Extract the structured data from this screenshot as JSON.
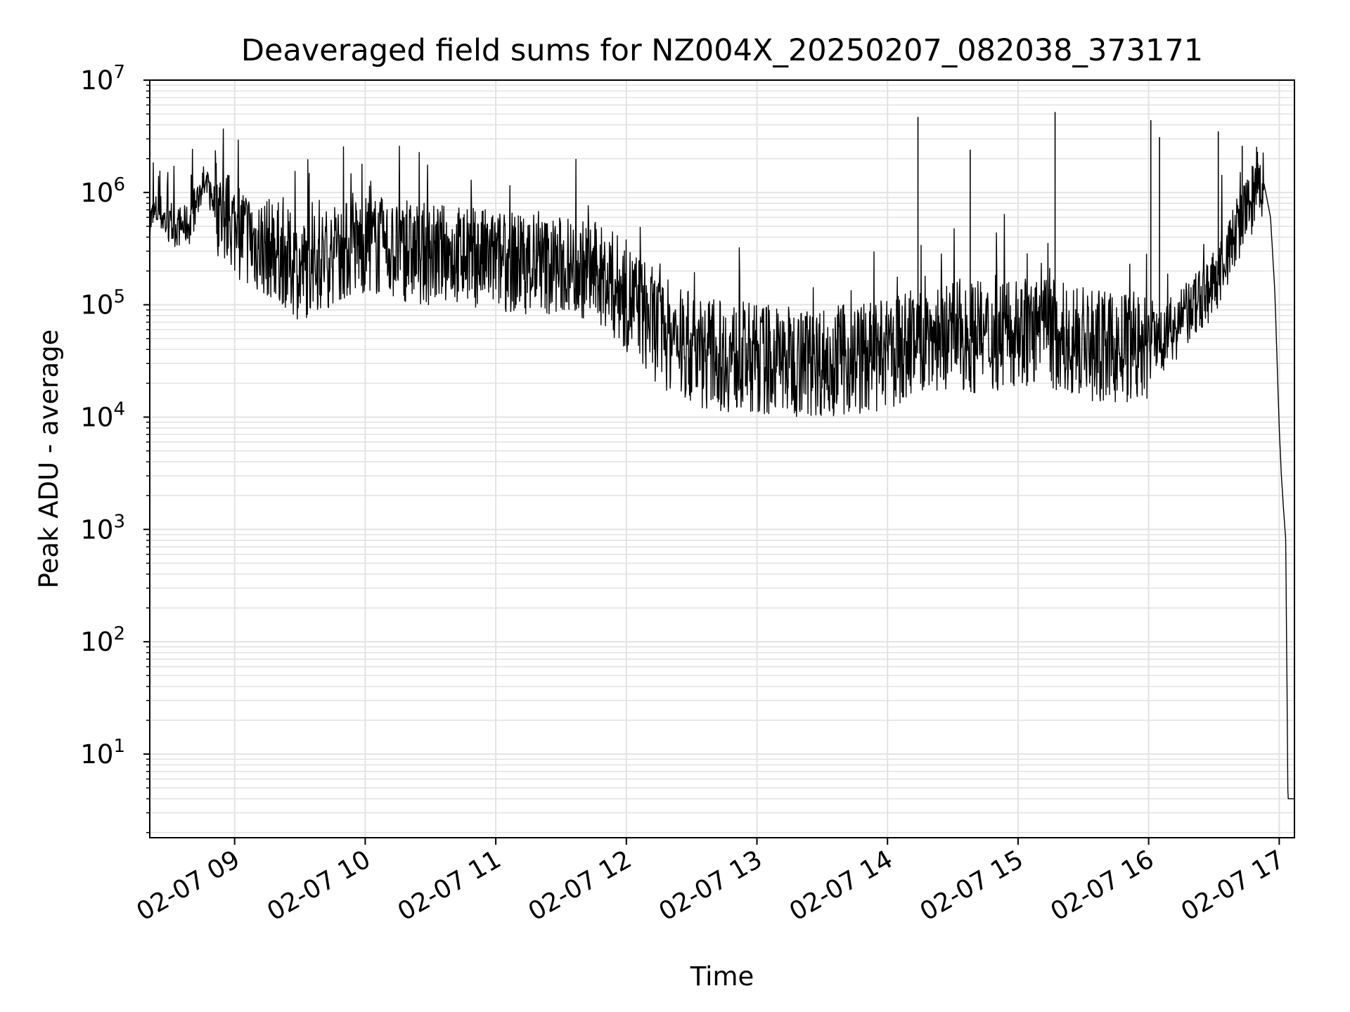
{
  "chart_data": {
    "type": "line",
    "title": "Deaveraged field sums for NZ004X_20250207_082038_373171",
    "xlabel": "Time",
    "ylabel": "Peak ADU - average",
    "x_range": [
      "2025-02-07 08:21",
      "2025-02-07 17:07"
    ],
    "x_ticks": [
      "02-07 09",
      "02-07 10",
      "02-07 11",
      "02-07 12",
      "02-07 13",
      "02-07 14",
      "02-07 15",
      "02-07 16",
      "02-07 17"
    ],
    "y_scale": "log",
    "ylim": [
      1.8,
      10000000
    ],
    "y_ticks": [
      {
        "base": "10",
        "exp": "1"
      },
      {
        "base": "10",
        "exp": "2"
      },
      {
        "base": "10",
        "exp": "3"
      },
      {
        "base": "10",
        "exp": "4"
      },
      {
        "base": "10",
        "exp": "5"
      },
      {
        "base": "10",
        "exp": "6"
      },
      {
        "base": "10",
        "exp": "7"
      }
    ],
    "grid": true,
    "series": [
      {
        "color": "#000000",
        "x": [
          "2025-02-07 08:21",
          "2025-02-07 08:25",
          "2025-02-07 08:30",
          "2025-02-07 08:35",
          "2025-02-07 08:40",
          "2025-02-07 08:45",
          "2025-02-07 08:50",
          "2025-02-07 08:55",
          "2025-02-07 09:00",
          "2025-02-07 09:10",
          "2025-02-07 09:20",
          "2025-02-07 09:30",
          "2025-02-07 09:40",
          "2025-02-07 09:50",
          "2025-02-07 10:00",
          "2025-02-07 10:15",
          "2025-02-07 10:30",
          "2025-02-07 10:45",
          "2025-02-07 11:00",
          "2025-02-07 11:15",
          "2025-02-07 11:30",
          "2025-02-07 11:45",
          "2025-02-07 12:00",
          "2025-02-07 12:15",
          "2025-02-07 12:30",
          "2025-02-07 12:45",
          "2025-02-07 13:00",
          "2025-02-07 13:15",
          "2025-02-07 13:30",
          "2025-02-07 13:45",
          "2025-02-07 14:00",
          "2025-02-07 14:15",
          "2025-02-07 14:30",
          "2025-02-07 14:45",
          "2025-02-07 15:00",
          "2025-02-07 15:15",
          "2025-02-07 15:30",
          "2025-02-07 15:45",
          "2025-02-07 16:00",
          "2025-02-07 16:15",
          "2025-02-07 16:30",
          "2025-02-07 16:45",
          "2025-02-07 16:53",
          "2025-02-07 16:56",
          "2025-02-07 16:58",
          "2025-02-07 17:00",
          "2025-02-07 17:01",
          "2025-02-07 17:02",
          "2025-02-07 17:03",
          "2025-02-07 17:04",
          "2025-02-07 17:05",
          "2025-02-07 17:07"
        ],
        "values": [
          550000,
          700000,
          480000,
          500000,
          520000,
          1200000,
          900000,
          600000,
          500000,
          350000,
          300000,
          200000,
          250000,
          300000,
          350000,
          300000,
          280000,
          280000,
          250000,
          230000,
          220000,
          200000,
          120000,
          60000,
          40000,
          35000,
          33000,
          32000,
          32000,
          33000,
          35000,
          50000,
          55000,
          50000,
          60000,
          55000,
          45000,
          40000,
          40000,
          70000,
          150000,
          700000,
          1200000,
          600000,
          130000,
          8000,
          3000,
          1500,
          800,
          4,
          4,
          4
        ]
      }
    ],
    "spikes": [
      {
        "x": "2025-02-07 14:14",
        "value": 4700000
      },
      {
        "x": "2025-02-07 14:38",
        "value": 2400000
      },
      {
        "x": "2025-02-07 15:17",
        "value": 5200000
      },
      {
        "x": "2025-02-07 16:01",
        "value": 4400000
      },
      {
        "x": "2025-02-07 16:05",
        "value": 3100000
      },
      {
        "x": "2025-02-07 16:32",
        "value": 3500000
      },
      {
        "x": "2025-02-07 16:43",
        "value": 2600000
      },
      {
        "x": "2025-02-07 16:50",
        "value": 2300000
      }
    ]
  }
}
